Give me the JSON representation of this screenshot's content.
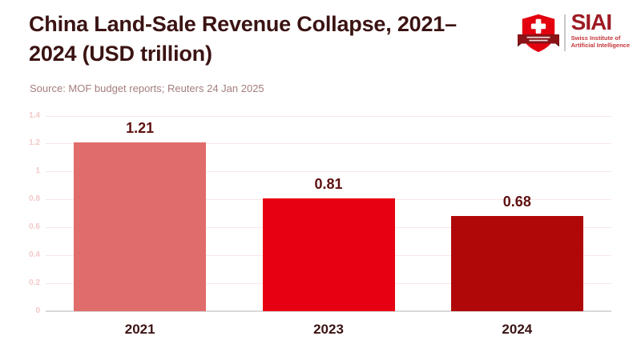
{
  "header": {
    "title_line1": "China Land-Sale Revenue Collapse, 2021–",
    "title_line2": "2024 (USD trillion)",
    "source": "Source: MOF budget reports; Reuters 24 Jan 2025"
  },
  "logo": {
    "wordmark": "SIAI",
    "subtitle_line1": "Swiss Institute of",
    "subtitle_line2": "Artificial Intelligence",
    "shield_color": "#e3000f",
    "ribbon_color": "#8a1317",
    "wordmark_color": "#9e1b24"
  },
  "chart_data": {
    "type": "bar",
    "title": "China Land-Sale Revenue Collapse, 2021–2024 (USD trillion)",
    "source": "Source: MOF budget reports; Reuters 24 Jan 2025",
    "categories": [
      "2021",
      "2023",
      "2024"
    ],
    "values": [
      1.21,
      0.81,
      0.68
    ],
    "value_labels": [
      "1.21",
      "0.81",
      "0.68"
    ],
    "bar_colors": [
      "#e06c6c",
      "#e60012",
      "#b00808"
    ],
    "ylim": [
      0,
      1.4
    ],
    "yticks": [
      0,
      0.2,
      0.4,
      0.6,
      0.8,
      1,
      1.2,
      1.4
    ],
    "ytick_labels": [
      "0",
      "0.2",
      "0.4",
      "0.6",
      "0.8",
      "1",
      "1.2",
      "1.4"
    ],
    "grid": true,
    "legend": false,
    "xlabel": "",
    "ylabel": ""
  }
}
